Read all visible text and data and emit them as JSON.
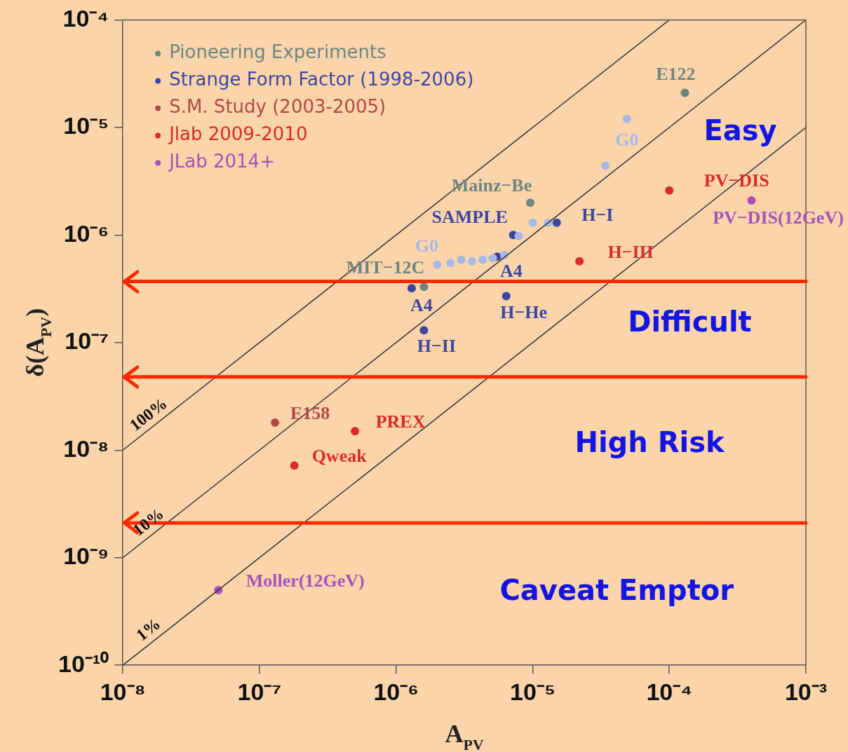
{
  "chart_data": {
    "type": "scatter",
    "xlabel": "A$_{PV}$",
    "ylabel": "δ(A$_{PV}$)",
    "log": "xy",
    "xlim": [
      1e-08,
      0.001
    ],
    "ylim": [
      1e-10,
      0.0001
    ],
    "xticks": [
      {
        "value": 1e-08,
        "label": "10⁻⁸"
      },
      {
        "value": 1e-07,
        "label": "10⁻⁷"
      },
      {
        "value": 1e-06,
        "label": "10⁻⁶"
      },
      {
        "value": 1e-05,
        "label": "10⁻⁵"
      },
      {
        "value": 0.0001,
        "label": "10⁻⁴"
      },
      {
        "value": 0.001,
        "label": "10⁻³"
      }
    ],
    "yticks": [
      {
        "value": 1e-10,
        "label": "10⁻¹⁰"
      },
      {
        "value": 1e-09,
        "label": "10⁻⁹"
      },
      {
        "value": 1e-08,
        "label": "10⁻⁸"
      },
      {
        "value": 1e-07,
        "label": "10⁻⁷"
      },
      {
        "value": 1e-06,
        "label": "10⁻⁶"
      },
      {
        "value": 1e-05,
        "label": "10⁻⁵"
      },
      {
        "value": 0.0001,
        "label": "10⁻⁴"
      }
    ],
    "grid": false,
    "legend": "top left",
    "marker": "circle",
    "series": [
      {
        "type": "line",
        "name": "100%",
        "color": "#333333",
        "marker": "none",
        "x": [
          1e-08,
          0.0001
        ],
        "values": [
          1e-08,
          0.0001
        ]
      },
      {
        "type": "line",
        "name": "10%",
        "color": "#333333",
        "marker": "none",
        "x": [
          1e-08,
          0.001
        ],
        "values": [
          1e-09,
          0.0001
        ]
      },
      {
        "type": "line",
        "name": "1%",
        "color": "#333333",
        "marker": "none",
        "x": [
          1e-08,
          0.001
        ],
        "values": [
          1e-10,
          1e-05
        ]
      },
      {
        "color": "#a8b8e4",
        "x": [
          2e-06,
          2.5e-06,
          3e-06,
          3.6e-06,
          4.3e-06,
          5.1e-06,
          6.2e-06,
          7.9e-06,
          1e-05,
          1.3e-05,
          3.4e-05,
          4.9e-05
        ],
        "values": [
          5.3e-07,
          5.5e-07,
          5.9e-07,
          5.7e-07,
          5.9e-07,
          6.1e-07,
          6.5e-07,
          9.8e-07,
          1.3e-06,
          1.3e-06,
          4.4e-06,
          1.2e-05
        ]
      },
      {
        "name": "Pioneering Experiments",
        "color": "#6f8580",
        "x": [
          0.00013,
          9.6e-06,
          1.6e-06
        ],
        "values": [
          2.1e-05,
          2e-06,
          3.3e-07
        ]
      },
      {
        "name": "Strange Form Factor (1998-2006)",
        "color": "#3c46a0",
        "x": [
          7.2e-06,
          1.5e-05,
          5.5e-06,
          6.4e-06,
          1.3e-06,
          1.6e-06
        ],
        "values": [
          1e-06,
          1.3e-06,
          6.3e-07,
          2.7e-07,
          3.2e-07,
          1.3e-07
        ]
      },
      {
        "name": "S.M. Study (2003-2005)",
        "color": "#b04a48",
        "x": [
          1.3e-07
        ],
        "values": [
          1.8e-08
        ]
      },
      {
        "name": "Jlab 2009-2010",
        "color": "#dc2a2a",
        "x": [
          5e-07,
          1.8e-07,
          2.2e-05,
          0.0001
        ],
        "values": [
          1.5e-08,
          7.2e-09,
          5.7e-07,
          2.6e-06
        ]
      },
      {
        "name": "JLab 2014+",
        "color": "#a653b8",
        "x": [
          5e-08,
          0.0004
        ],
        "values": [
          5e-10,
          2.1e-06
        ]
      }
    ],
    "ref_lines": [
      {
        "axis": "y",
        "value": 3.7e-07,
        "color": "#ff2a00"
      },
      {
        "axis": "y",
        "value": 4.8e-08,
        "color": "#ff2a00"
      },
      {
        "axis": "y",
        "value": 2.1e-09,
        "color": "#ff2a00"
      }
    ],
    "annotations": [
      {
        "text": "E122",
        "x": 0.00013,
        "y": 2.1e-05
      },
      {
        "text": "Mainz−Be",
        "x": 9.6e-06,
        "y": 2e-06
      },
      {
        "text": "MIT−12C",
        "x": 1.6e-06,
        "y": 3.3e-07
      },
      {
        "text": "SAMPLE",
        "x": 7.2e-06,
        "y": 1e-06
      },
      {
        "text": "H−I",
        "x": 1.5e-05,
        "y": 1.3e-06
      },
      {
        "text": "A4",
        "x": 5.5e-06,
        "y": 6.3e-07
      },
      {
        "text": "H−He",
        "x": 6.4e-06,
        "y": 2.7e-07
      },
      {
        "text": "A4",
        "x": 1.3e-06,
        "y": 3.2e-07
      },
      {
        "text": "H−II",
        "x": 1.6e-06,
        "y": 1.3e-07
      },
      {
        "text": "G0",
        "x": 4.9e-05,
        "y": 1.2e-05
      },
      {
        "text": "G0",
        "x": 2e-06,
        "y": 5.3e-07
      },
      {
        "text": "E158",
        "x": 1.3e-07,
        "y": 1.8e-08
      },
      {
        "text": "PREX",
        "x": 5e-07,
        "y": 1.5e-08
      },
      {
        "text": "Qweak",
        "x": 1.8e-07,
        "y": 7.2e-09
      },
      {
        "text": "H−III",
        "x": 2.2e-05,
        "y": 5.7e-07
      },
      {
        "text": "PV−DIS",
        "x": 0.0001,
        "y": 2.6e-06
      },
      {
        "text": "PV−DIS(12GeV)",
        "x": 0.0004,
        "y": 2.1e-06
      },
      {
        "text": "Moller(12GeV)",
        "x": 5e-08,
        "y": 5e-10
      },
      "Easy",
      "Difficult",
      "High Risk",
      "Caveat Emptor"
    ]
  }
}
